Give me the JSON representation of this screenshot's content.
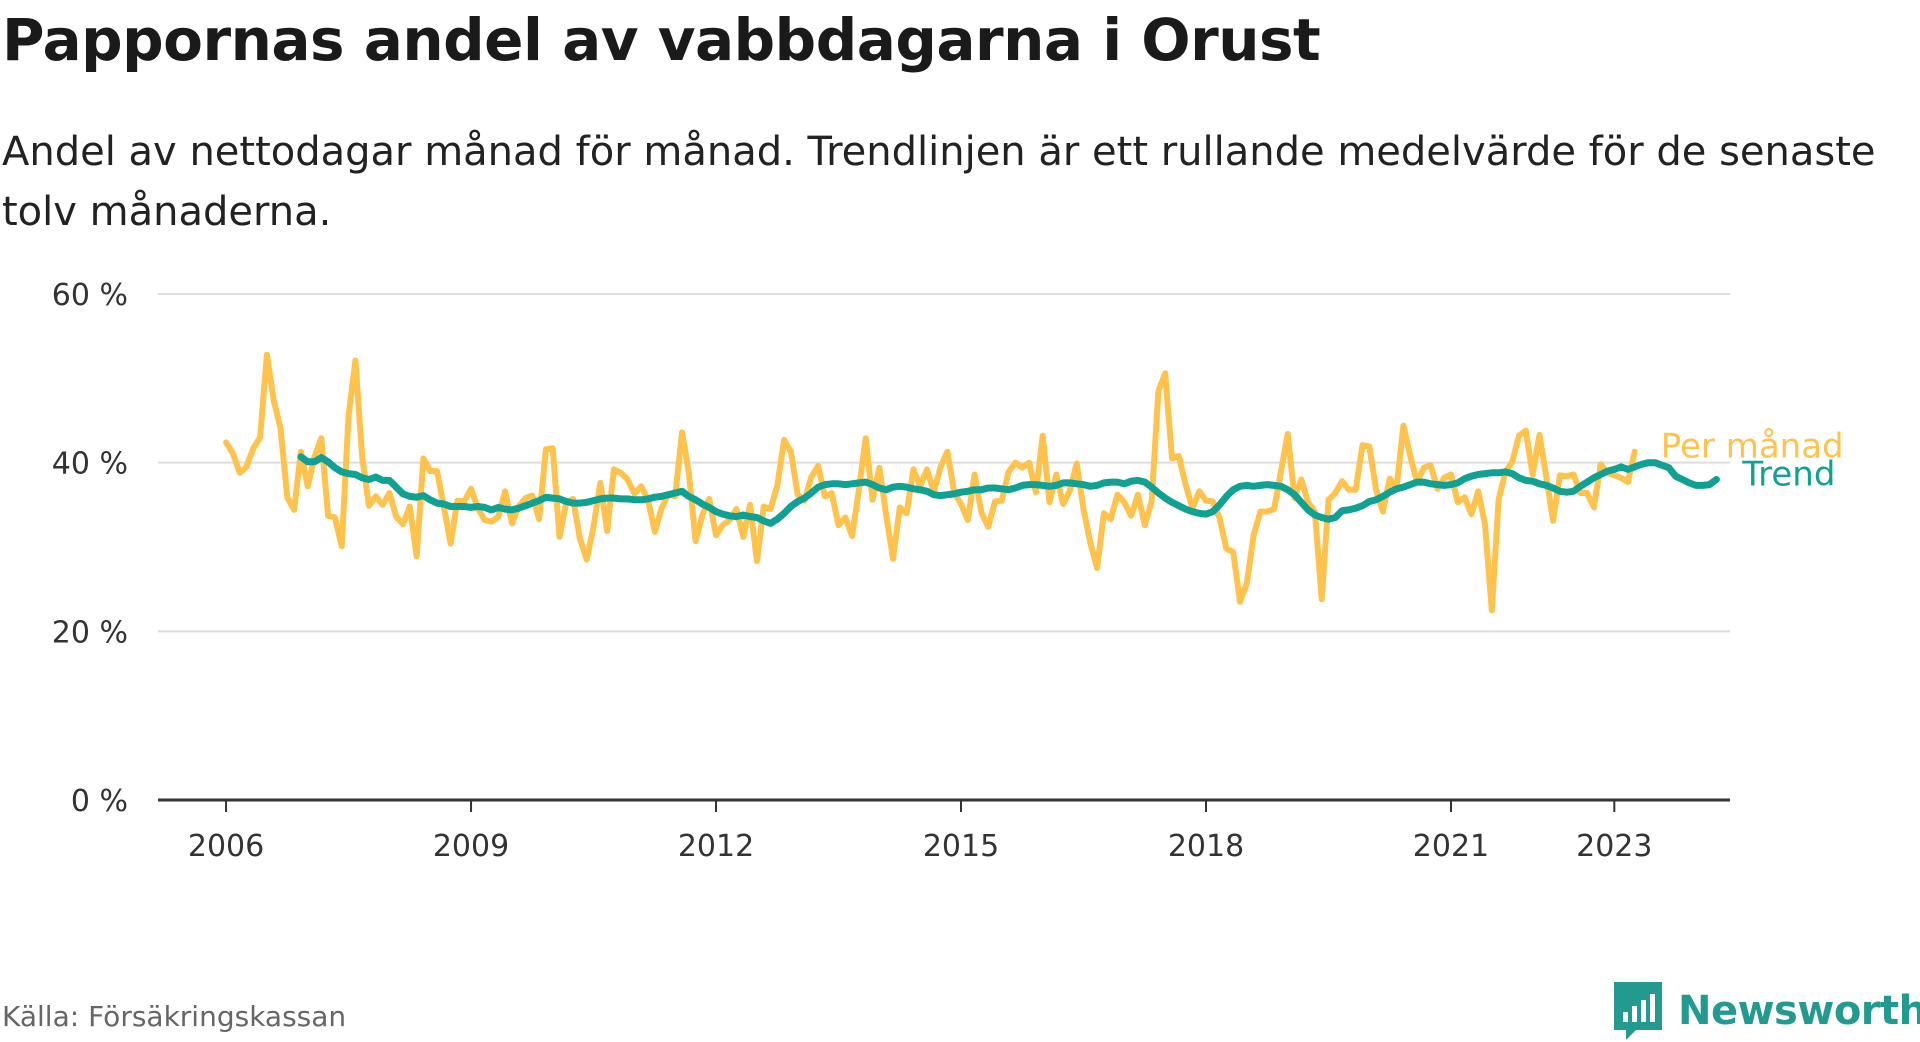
{
  "title": "Pappornas andel av vabbdagarna i Orust",
  "subtitle": "Andel av nettodagar månad för månad. Trendlinjen är ett rullande medelvärde för de senaste tolv månaderna.",
  "source": "Källa: Försäkringskassan",
  "brand": {
    "name": "Newsworthy",
    "icon": "newsworthy-logo-icon",
    "color": "#239a8f"
  },
  "colors": {
    "per_month": "#ffc34d",
    "trend": "#10a192",
    "grid": "#dddddd",
    "axis": "#333333"
  },
  "chart_data": {
    "type": "line",
    "title": "Pappornas andel av vabbdagarna i Orust",
    "xlabel": "",
    "ylabel": "",
    "x_ticks": [
      "2006",
      "2009",
      "2012",
      "2015",
      "2018",
      "2021",
      "2023"
    ],
    "y_ticks": [
      "0 %",
      "20 %",
      "40 %",
      "60 %"
    ],
    "ylim": [
      0,
      60
    ],
    "xlim": [
      "2005-03",
      "2024-06"
    ],
    "grid": "horizontal",
    "legend": "inline-right",
    "series": [
      {
        "name": "Per månad",
        "start": "2006-01",
        "values": [
          42.4,
          41.1,
          38.8,
          39.5,
          41.7,
          43,
          52.8,
          47.4,
          44.1,
          35.9,
          34.4,
          41.3,
          37.2,
          40.7,
          42.9,
          33.7,
          33.5,
          30.1,
          45.5,
          52.1,
          40.6,
          34.9,
          36,
          35,
          36.4,
          33.6,
          32.7,
          34.8,
          28.9,
          40.5,
          39,
          39,
          34.8,
          30.4,
          35.5,
          35.4,
          36.9,
          34.6,
          33.2,
          33,
          33.6,
          36.6,
          32.8,
          34.8,
          35.8,
          36.1,
          33.3,
          41.6,
          41.7,
          31.2,
          35.3,
          35.7,
          31,
          28.5,
          32.4,
          37.6,
          31.9,
          39.2,
          38.8,
          38,
          36.3,
          37.2,
          35.6,
          31.8,
          34.6,
          36.3,
          36,
          43.6,
          38.8,
          30.7,
          33.8,
          35.7,
          31.4,
          32.6,
          33.2,
          34.5,
          31.2,
          35,
          28.3,
          34.8,
          34.5,
          37.3,
          42.7,
          41.3,
          36.2,
          35.5,
          38.3,
          39.6,
          36,
          36.4,
          32.6,
          33.5,
          31.3,
          36.8,
          42.9,
          35.6,
          39.4,
          33.8,
          28.6,
          34.7,
          34,
          39.2,
          37.2,
          39.2,
          36.5,
          39.5,
          41.3,
          36.5,
          35.1,
          33.2,
          38.6,
          34.1,
          32.4,
          35.4,
          35.5,
          38.9,
          40,
          39.4,
          40,
          36.5,
          43.2,
          35.3,
          38.6,
          35.1,
          36.7,
          39.9,
          34.5,
          30.5,
          27.5,
          34,
          33.3,
          36.2,
          35.3,
          33.7,
          36.2,
          32.6,
          35.4,
          48.5,
          50.6,
          40.5,
          40.8,
          37.4,
          34.6,
          36.6,
          35.5,
          35.4,
          33.4,
          29.8,
          29.4,
          23.5,
          25.7,
          31.4,
          34.2,
          34.2,
          34.5,
          38.9,
          43.4,
          35.8,
          38,
          35.3,
          34.2,
          23.8,
          35.6,
          36.4,
          37.8,
          36.8,
          36.8,
          42.1,
          41.9,
          36.8,
          34.2,
          38.1,
          37,
          44.4,
          40.8,
          37.7,
          39.4,
          39.7,
          36.9,
          38.2,
          38.6,
          35.3,
          35.9,
          33.9,
          36.6,
          32.7,
          22.5,
          35.6,
          38.9,
          40.1,
          43.2,
          43.8,
          38.6,
          43.3,
          38.3,
          33.1,
          38.5,
          38.4,
          38.6,
          36.4,
          36.4,
          34.7,
          39.8,
          38.8,
          38.5,
          38.2,
          37.7,
          41.3
        ]
      },
      {
        "name": "Trend",
        "start": "2006-12",
        "values": [
          40.7,
          40.1,
          40.1,
          40.6,
          40.1,
          39.4,
          38.9,
          38.7,
          38.6,
          38.2,
          38,
          38.3,
          37.9,
          37.9,
          37.1,
          36.3,
          36,
          35.9,
          36.1,
          35.6,
          35.2,
          35.1,
          34.8,
          34.8,
          34.8,
          34.7,
          34.8,
          34.7,
          34.4,
          34.7,
          34.5,
          34.4,
          34.6,
          34.9,
          35.2,
          35.5,
          35.9,
          35.8,
          35.7,
          35.4,
          35.2,
          35.2,
          35.3,
          35.5,
          35.7,
          35.8,
          35.8,
          35.7,
          35.7,
          35.6,
          35.6,
          35.7,
          35.9,
          36,
          36.2,
          36.4,
          36.6,
          36,
          35.6,
          35.1,
          34.7,
          34.2,
          33.9,
          33.7,
          33.6,
          33.8,
          33.6,
          33.5,
          33.1,
          32.8,
          33.3,
          34,
          34.8,
          35.4,
          35.8,
          36.4,
          37.1,
          37.4,
          37.5,
          37.5,
          37.4,
          37.5,
          37.6,
          37.7,
          37.4,
          37,
          36.8,
          37.1,
          37.2,
          37.1,
          36.9,
          36.8,
          36.6,
          36.2,
          36.1,
          36.2,
          36.3,
          36.5,
          36.6,
          36.8,
          36.8,
          37,
          37,
          36.9,
          36.8,
          37,
          37.3,
          37.4,
          37.4,
          37.3,
          37.2,
          37.3,
          37.6,
          37.6,
          37.5,
          37.4,
          37.2,
          37.3,
          37.6,
          37.7,
          37.7,
          37.5,
          37.8,
          37.9,
          37.7,
          37.1,
          36.4,
          35.8,
          35.3,
          34.9,
          34.5,
          34.2,
          34,
          33.9,
          34.2,
          35,
          36,
          36.8,
          37.2,
          37.3,
          37.2,
          37.3,
          37.4,
          37.3,
          37.2,
          36.8,
          36.2,
          35.3,
          34.4,
          33.8,
          33.5,
          33.3,
          33.5,
          34.3,
          34.4,
          34.6,
          34.9,
          35.4,
          35.6,
          36,
          36.5,
          36.9,
          37.1,
          37.4,
          37.7,
          37.7,
          37.5,
          37.4,
          37.3,
          37.4,
          37.6,
          38.1,
          38.4,
          38.6,
          38.7,
          38.8,
          38.8,
          38.9,
          38.7,
          38.2,
          37.9,
          37.8,
          37.5,
          37.3,
          37,
          36.6,
          36.5,
          36.6,
          37.2,
          37.7,
          38.2,
          38.6,
          39,
          39.2,
          39.5,
          39.2,
          39.5,
          39.8,
          40,
          40,
          39.7,
          39.4,
          38.4,
          38,
          37.6,
          37.3,
          37.3,
          37.4,
          38
        ]
      }
    ]
  }
}
